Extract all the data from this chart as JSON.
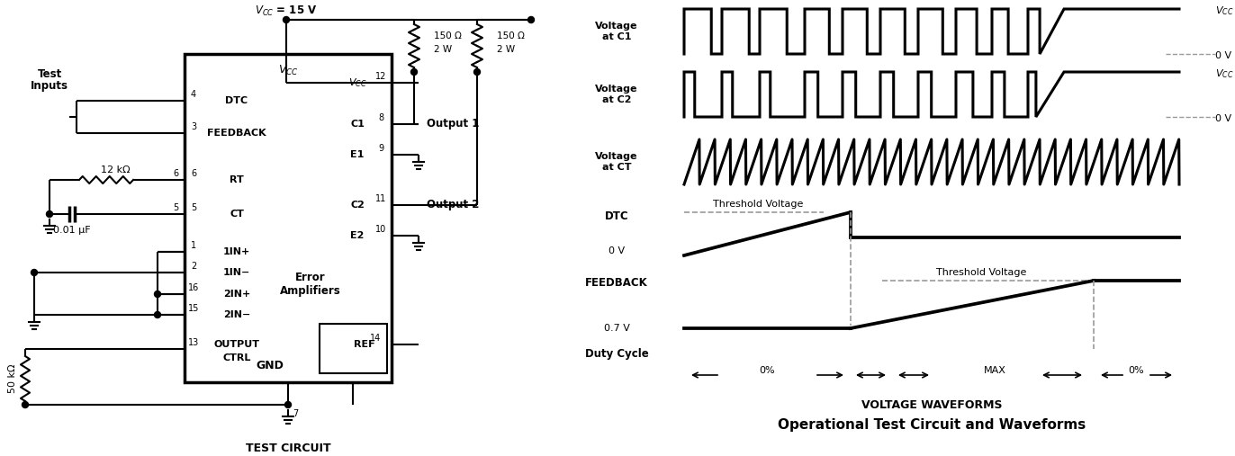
{
  "title": "Operational Test Circuit and Waveforms",
  "subtitle": "VOLTAGE WAVEFORMS",
  "background": "#ffffff",
  "line_color": "#000000",
  "gray_dashed": "#999999",
  "left_panel": {
    "vcc_label": "VCC = 15 V",
    "ic_pins_left": [
      "DTC",
      "FEEDBACK",
      "RT",
      "CT",
      "1IN+",
      "1IN-",
      "2IN+",
      "2IN-",
      "OUTPUT\nCTRL",
      "GND"
    ],
    "ic_pins_right": [
      "VCC",
      "C1",
      "E1",
      "C2",
      "E2",
      "REF"
    ],
    "pin_numbers_left": [
      4,
      3,
      6,
      5,
      1,
      2,
      16,
      15,
      13,
      7
    ],
    "pin_numbers_right": [
      12,
      8,
      9,
      11,
      10,
      14
    ],
    "resistors": [
      "150 Ω\n2 W",
      "150 Ω\n2 W"
    ],
    "other_components": [
      "12 kΩ",
      "0.01 μF",
      "50 kΩ"
    ],
    "outputs": [
      "Output 1",
      "Output 2"
    ],
    "error_amp_label": "Error\nAmplifiers",
    "test_inputs_label": "Test\nInputs",
    "footer": "TEST CIRCUIT"
  },
  "right_panel": {
    "waveform_labels_left": [
      "Voltage\nat C1",
      "Voltage\nat C2",
      "Voltage\nat CT",
      "DTC",
      "FEEDBACK",
      "Duty Cycle"
    ],
    "vcc_label": "VCC",
    "zero_v_label": "0 V",
    "dtc_annotations": [
      "Threshold Voltage",
      "0 V"
    ],
    "feedback_annotations": [
      "Threshold Voltage",
      "0.7 V"
    ],
    "duty_cycle_annotations": [
      "0%",
      "MAX",
      "0%"
    ]
  }
}
